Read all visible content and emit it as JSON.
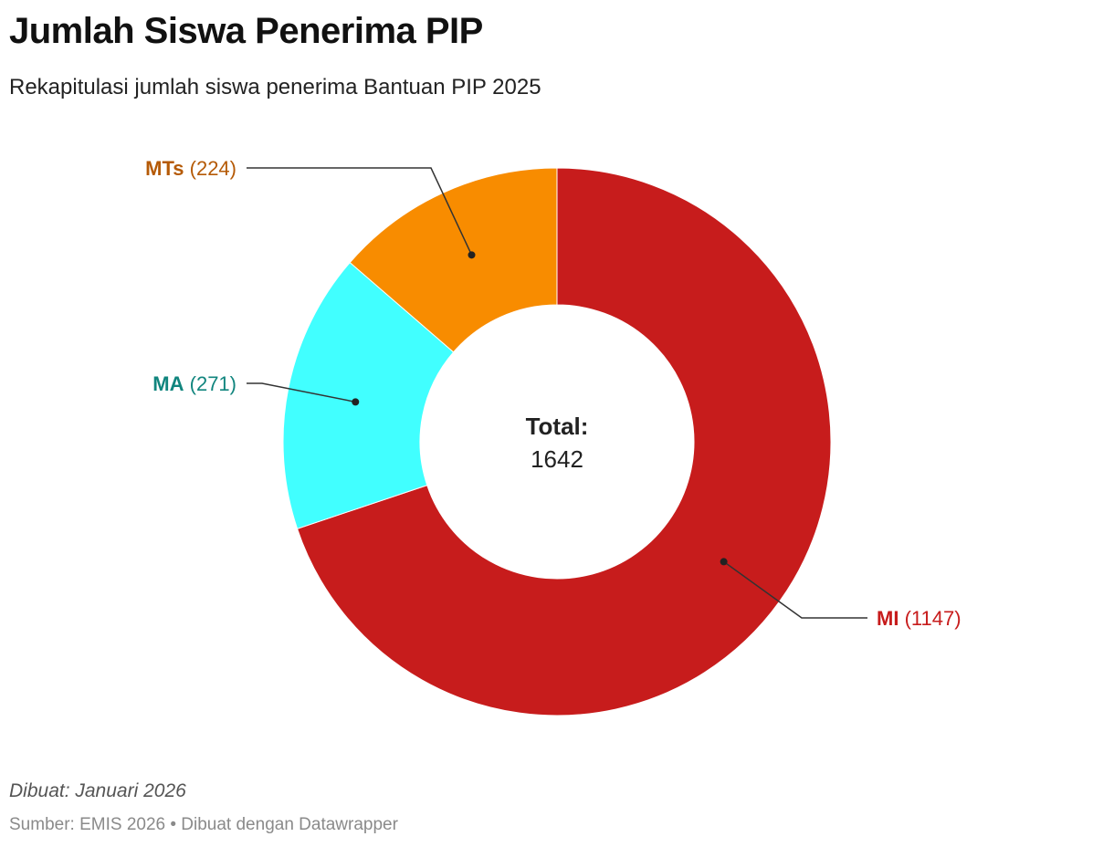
{
  "header": {
    "title": "Jumlah Siswa Penerima PIP",
    "subtitle": "Rekapitulasi jumlah siswa penerima Bantuan PIP 2025"
  },
  "chart_data": {
    "type": "pie",
    "variant": "donut",
    "center_label": "Total:",
    "center_value": "1642",
    "slices": [
      {
        "name": "MI",
        "value": 1147,
        "color": "#c71c1c",
        "label_color": "#c71c1c"
      },
      {
        "name": "MA",
        "value": 271,
        "color": "#41ffff",
        "label_color": "#11857e"
      },
      {
        "name": "MTs",
        "value": 224,
        "color": "#f88c00",
        "label_color": "#b55a06"
      }
    ]
  },
  "footer": {
    "note": "Dibuat: Januari 2026",
    "source": "Sumber: EMIS 2026 • Dibuat dengan Datawrapper"
  }
}
